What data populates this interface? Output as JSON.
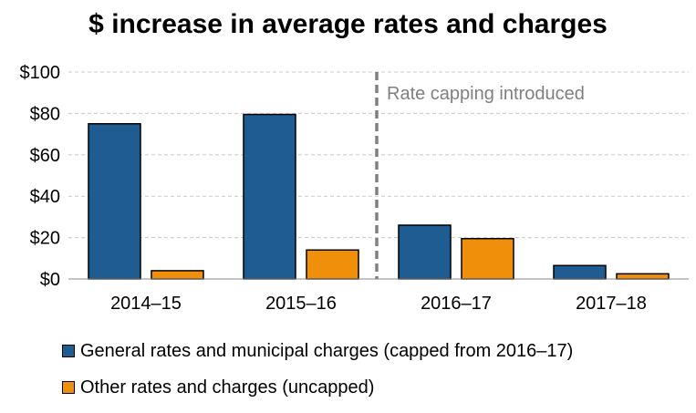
{
  "chart_data": {
    "type": "bar",
    "title": "$ increase in average rates and charges",
    "categories": [
      "2014–15",
      "2015–16",
      "2016–17",
      "2017–18"
    ],
    "series": [
      {
        "name": "General rates and municipal charges (capped from 2016–17)",
        "values": [
          75,
          79.5,
          26,
          6.5
        ],
        "color": "#1F5C91"
      },
      {
        "name": "Other rates and charges (uncapped)",
        "values": [
          4,
          14,
          19.5,
          2.5
        ],
        "color": "#F0900A"
      }
    ],
    "ylim": [
      0,
      100
    ],
    "yticks": [
      0,
      20,
      40,
      60,
      80,
      100
    ],
    "ytick_labels": [
      "$0",
      "$20",
      "$40",
      "$60",
      "$80",
      "$100"
    ],
    "grid": true,
    "annotation": {
      "text": "Rate capping introduced",
      "between_categories": [
        "2015–16",
        "2016–17"
      ]
    },
    "legend_position": "bottom"
  }
}
